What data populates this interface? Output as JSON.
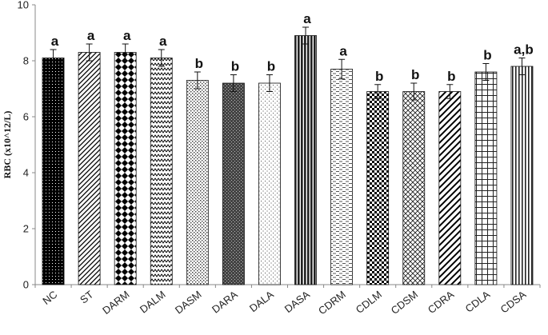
{
  "chart_data": {
    "type": "bar",
    "title": "",
    "xlabel": "",
    "ylabel": "RBC (x10^12/L)",
    "ylim": [
      0,
      10
    ],
    "yticks": [
      0,
      2,
      4,
      6,
      8,
      10
    ],
    "grid": false,
    "legend": "none",
    "categories": [
      "NC",
      "ST",
      "DARM",
      "DALM",
      "DASM",
      "DARA",
      "DALA",
      "DASA",
      "CDRM",
      "CDLM",
      "CDSM",
      "CDRA",
      "CDLA",
      "CDSA"
    ],
    "values": [
      8.1,
      8.3,
      8.3,
      8.1,
      7.3,
      7.2,
      7.2,
      8.9,
      7.7,
      6.9,
      6.9,
      6.9,
      7.6,
      7.8
    ],
    "errors": [
      0.3,
      0.3,
      0.3,
      0.3,
      0.3,
      0.3,
      0.3,
      0.3,
      0.35,
      0.25,
      0.3,
      0.25,
      0.3,
      0.3
    ],
    "significance": [
      "a",
      "a",
      "a",
      "a",
      "b",
      "b",
      "b",
      "a",
      "a",
      "b",
      "b",
      "b",
      "b",
      "a,b"
    ],
    "patterns": [
      "black-dots",
      "diagonal-right",
      "diamonds",
      "zigzag",
      "dotted-light",
      "dark-dense",
      "sparse-dots",
      "vertical-dark",
      "dashes-light",
      "checker",
      "crosshatch",
      "diagonal-wide",
      "grid",
      "vertical-thin"
    ]
  }
}
